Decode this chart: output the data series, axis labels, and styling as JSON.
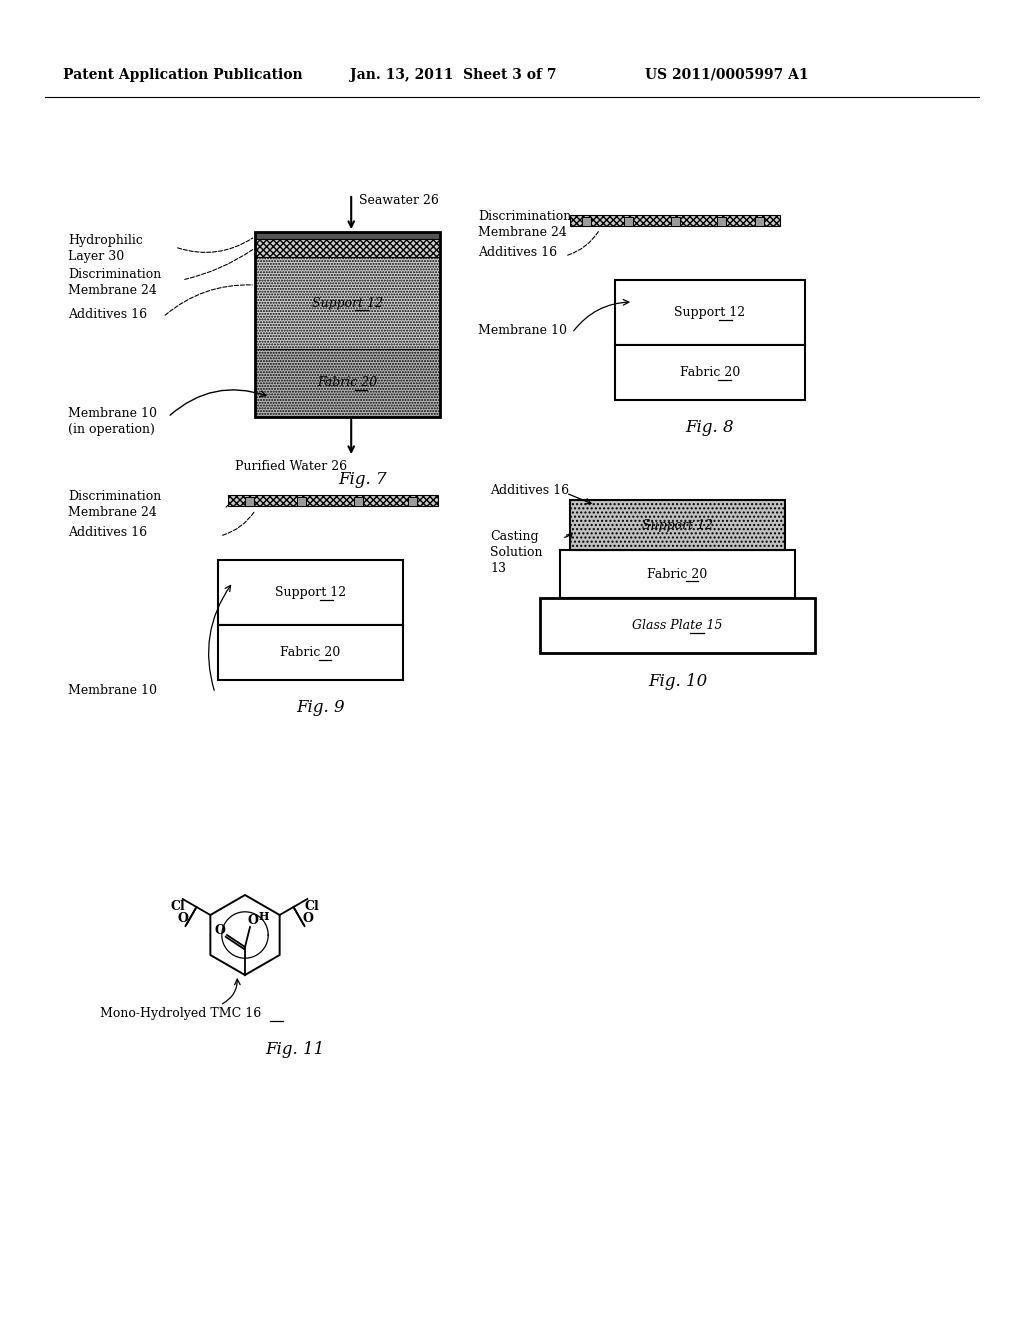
{
  "header_left": "Patent Application Publication",
  "header_mid": "Jan. 13, 2011  Sheet 3 of 7",
  "header_right": "US 2011/0005997 A1",
  "bg_color": "#ffffff",
  "fig7_label": "Fig. 7",
  "fig8_label": "Fig. 8",
  "fig9_label": "Fig. 9",
  "fig10_label": "Fig. 10",
  "fig11_label": "Fig. 11",
  "support_gray": "#c8c8c8",
  "fabric_gray": "#b0b0b0",
  "disc_mem_gray": "#c0c0c0",
  "casting_gray": "#b8b8b8"
}
